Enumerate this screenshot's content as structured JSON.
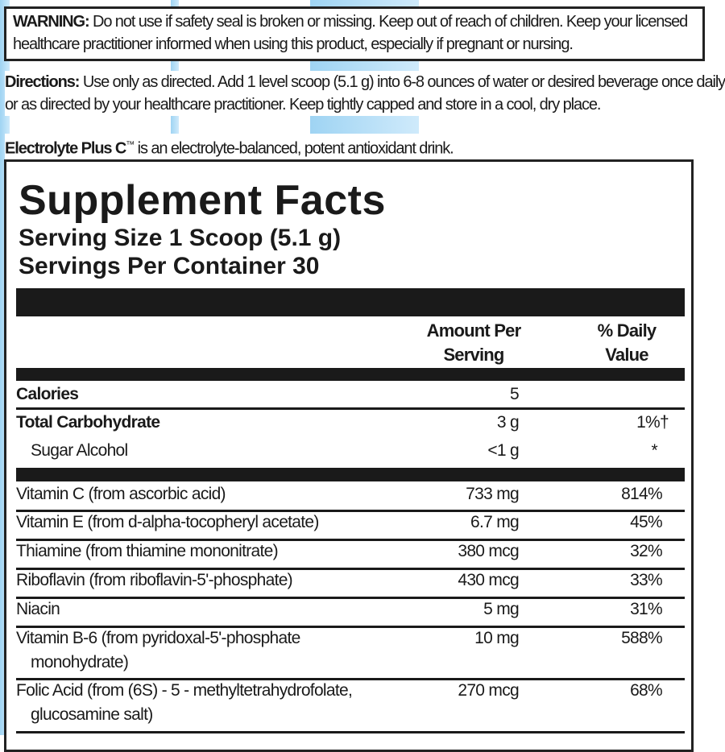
{
  "warning": {
    "label": "WARNING:",
    "text": " Do not use if safety seal is broken or missing.  Keep out of reach of children. Keep your licensed",
    "text2": "healthcare practitioner informed when using this product, especially if pregnant or nursing."
  },
  "directions": {
    "label": "Directions:",
    "text": " Use only as directed. Add 1 level scoop (5.1 g) into 6-8 ounces of water or desired beverage once daily",
    "text2": "or as directed by your healthcare practitioner. Keep tightly capped and store in a cool, dry place."
  },
  "product": {
    "name": "Electrolyte Plus C",
    "tm": "™",
    "text": " is an electrolyte-balanced, potent antioxidant drink."
  },
  "facts": {
    "title": "Supplement Facts",
    "serving_size": "Serving Size 1 Scoop (5.1 g)",
    "servings_per_container": "Servings Per Container 30",
    "header_amount_1": "Amount Per",
    "header_amount_2": "Serving",
    "header_dv_1": "% Daily",
    "header_dv_2": "Value",
    "top_rows": [
      {
        "name": "Calories",
        "amount": "5",
        "dv": ""
      },
      {
        "name": "Total Carbohydrate",
        "amount": "3 g",
        "dv": "1%†"
      },
      {
        "name": "Sugar Alcohol",
        "amount": "<1 g",
        "dv": "*"
      }
    ],
    "rows": [
      {
        "name": "Vitamin C (from ascorbic acid)",
        "amount": "733 mg",
        "dv": "814%"
      },
      {
        "name": "Vitamin E (from d-alpha-tocopheryl acetate)",
        "amount": "6.7 mg",
        "dv": "45%"
      },
      {
        "name": "Thiamine (from thiamine mononitrate)",
        "amount": "380 mcg",
        "dv": "32%"
      },
      {
        "name": "Riboflavin (from riboflavin-5'-phosphate)",
        "amount": "430 mcg",
        "dv": "33%"
      },
      {
        "name": "Niacin",
        "amount": "5 mg",
        "dv": "31%"
      },
      {
        "name": "Vitamin B-6 (from pyridoxal-5'-phosphate",
        "name2": "monohydrate)",
        "amount": "10 mg",
        "dv": "588%"
      },
      {
        "name": "Folic Acid (from (6S) - 5 - methyltetrahydrofolate,",
        "name2": "glucosamine salt)",
        "amount": "270 mcg",
        "dv": "68%"
      }
    ]
  }
}
